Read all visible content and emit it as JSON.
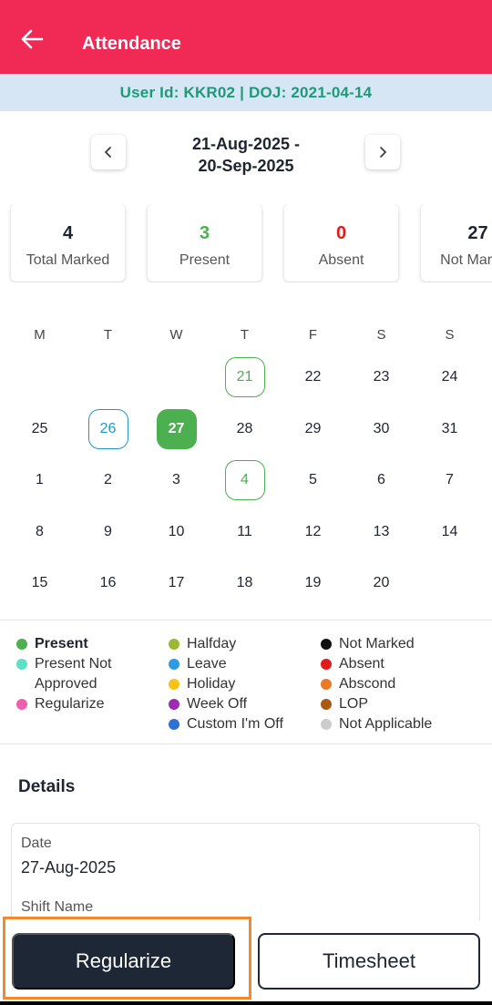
{
  "header": {
    "title": "Attendance"
  },
  "user_banner": {
    "text": "User Id: KKR02 | DOJ: 2021-04-14"
  },
  "date_range": {
    "line1": "21-Aug-2025 -",
    "line2": "20-Sep-2025"
  },
  "stats": [
    {
      "value": "4",
      "label": "Total Marked",
      "color": "#1f2430"
    },
    {
      "value": "3",
      "label": "Present",
      "color": "#4caf50"
    },
    {
      "value": "0",
      "label": "Absent",
      "color": "#e01b1b"
    },
    {
      "value": "27",
      "label": "Not Marked",
      "color": "#1f2430"
    }
  ],
  "calendar": {
    "weekdays": [
      "M",
      "T",
      "W",
      "T",
      "F",
      "S",
      "S"
    ],
    "weeks": [
      [
        {
          "d": ""
        },
        {
          "d": ""
        },
        {
          "d": ""
        },
        {
          "d": "21",
          "s": "outline-green"
        },
        {
          "d": "22"
        },
        {
          "d": "23"
        },
        {
          "d": "24"
        }
      ],
      [
        {
          "d": "25"
        },
        {
          "d": "26",
          "s": "outline-blue"
        },
        {
          "d": "27",
          "s": "filled-green"
        },
        {
          "d": "28"
        },
        {
          "d": "29"
        },
        {
          "d": "30"
        },
        {
          "d": "31"
        }
      ],
      [
        {
          "d": "1"
        },
        {
          "d": "2"
        },
        {
          "d": "3"
        },
        {
          "d": "4",
          "s": "outline-green"
        },
        {
          "d": "5"
        },
        {
          "d": "6"
        },
        {
          "d": "7"
        }
      ],
      [
        {
          "d": "8"
        },
        {
          "d": "9"
        },
        {
          "d": "10"
        },
        {
          "d": "11"
        },
        {
          "d": "12"
        },
        {
          "d": "13"
        },
        {
          "d": "14"
        }
      ],
      [
        {
          "d": "15"
        },
        {
          "d": "16"
        },
        {
          "d": "17"
        },
        {
          "d": "18"
        },
        {
          "d": "19"
        },
        {
          "d": "20"
        },
        {
          "d": ""
        }
      ]
    ]
  },
  "legend": {
    "col1": [
      {
        "label": "Present",
        "color": "#4caf50",
        "bold": true
      },
      {
        "label": "Present Not Approved",
        "color": "#5ee0c8"
      },
      {
        "label": "Regularize",
        "color": "#ee5fae"
      }
    ],
    "col2": [
      {
        "label": "Halfday",
        "color": "#9bb833"
      },
      {
        "label": "Leave",
        "color": "#2e9be0"
      },
      {
        "label": "Holiday",
        "color": "#f7c319"
      },
      {
        "label": "Week Off",
        "color": "#9b2eb0"
      },
      {
        "label": "Custom I'm Off",
        "color": "#2f6fd6"
      }
    ],
    "col3": [
      {
        "label": "Not Marked",
        "color": "#111111"
      },
      {
        "label": "Absent",
        "color": "#e01b1b"
      },
      {
        "label": "Abscond",
        "color": "#e87a2a"
      },
      {
        "label": "LOP",
        "color": "#a85a12"
      },
      {
        "label": "Not Applicable",
        "color": "#cccccc"
      }
    ]
  },
  "details": {
    "title": "Details",
    "date_label": "Date",
    "date_value": "27-Aug-2025",
    "shift_label": "Shift Name"
  },
  "actions": {
    "regularize": "Regularize",
    "timesheet": "Timesheet"
  }
}
